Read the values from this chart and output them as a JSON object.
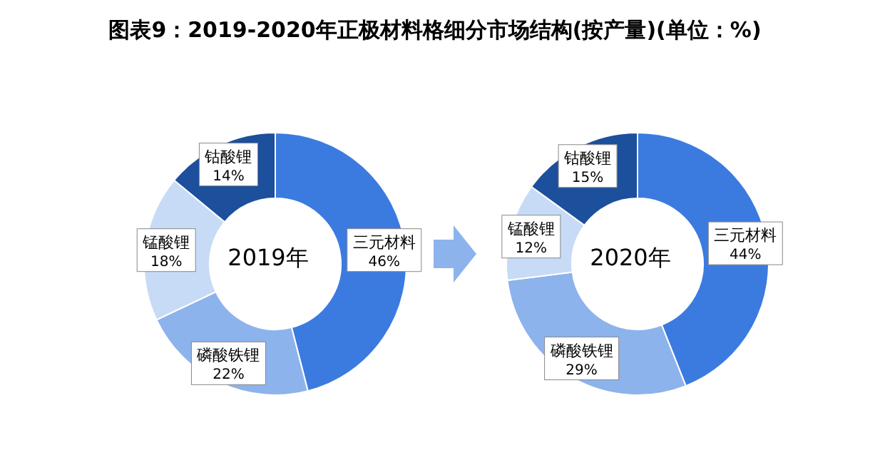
{
  "chart_data": [
    {
      "type": "donut",
      "title": "图表9：2019-2020年正极材料格细分市场结构(按产量)(单位：%)",
      "categories": [
        "三元材料",
        "磷酸铁锂",
        "锰酸锂",
        "钴酸锂"
      ],
      "values": [
        46,
        22,
        18,
        14
      ],
      "value_labels": [
        "46%",
        "22%",
        "18%",
        "14%"
      ],
      "colors": [
        "#3b7be0",
        "#8db3ec",
        "#c7dbf6",
        "#1c4f9c"
      ],
      "annotations": [
        "2019年"
      ]
    },
    {
      "type": "donut",
      "categories": [
        "三元材料",
        "磷酸铁锂",
        "锰酸锂",
        "钴酸锂"
      ],
      "values": [
        44,
        29,
        12,
        15
      ],
      "value_labels": [
        "44%",
        "29%",
        "12%",
        "15%"
      ],
      "colors": [
        "#3b7be0",
        "#8db3ec",
        "#c7dbf6",
        "#1c4f9c"
      ],
      "annotations": [
        "2020年"
      ]
    }
  ]
}
